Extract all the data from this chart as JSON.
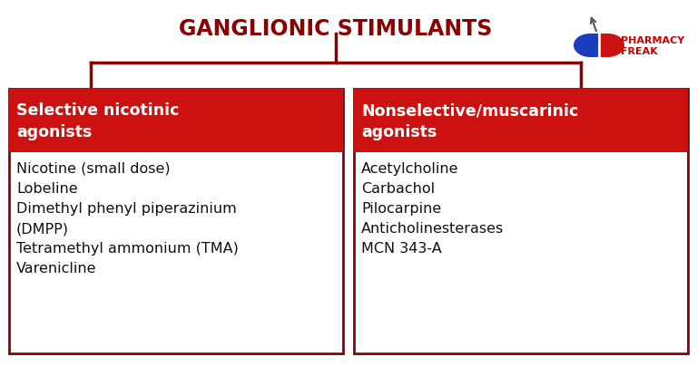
{
  "title": "GANGLIONIC STIMULANTS",
  "title_color": "#8B0000",
  "title_fontsize": 17,
  "background_color": "#FFFFFF",
  "box_border_color": "#8B0000",
  "header_bg_color": "#CC1111",
  "header_text_color": "#FFFFFF",
  "left_header": "Selective nicotinic\nagonists",
  "right_header": "Nonselective/muscarinic\nagonists",
  "left_items": [
    "Nicotine (small dose)",
    "Lobeline",
    "Dimethyl phenyl piperazinium",
    "(DMPP)",
    "Tetramethyl ammonium (TMA)",
    "Varenicline"
  ],
  "right_items": [
    "Acetylcholine",
    "Carbachol",
    "Pilocarpine",
    "Anticholinesterases",
    "MCN 343-A"
  ],
  "body_text_color": "#111111",
  "body_fontsize": 11.5,
  "header_fontsize": 12.5,
  "logo_text1": "PHARMACY",
  "logo_text2": "FREAK",
  "logo_color": "#CC0000",
  "line_color": "#8B0000",
  "line_lw": 2.5
}
